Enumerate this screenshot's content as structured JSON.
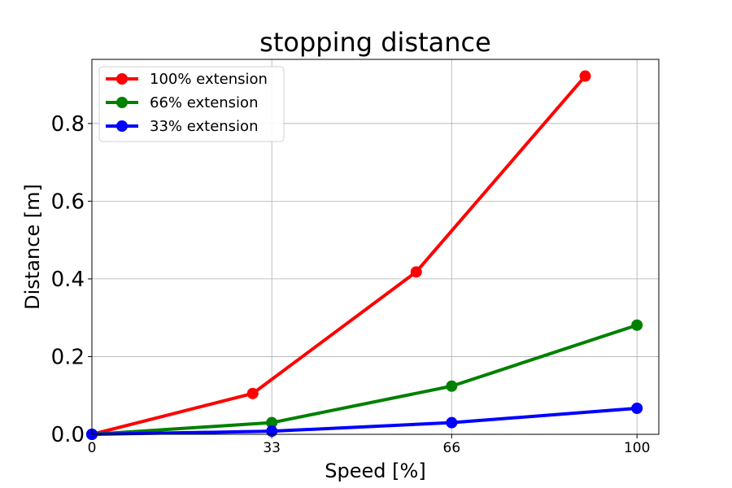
{
  "chart_data": {
    "type": "line",
    "title": "stopping distance",
    "xlabel": "Speed [%]",
    "ylabel": "Distance [m]",
    "xlim": [
      0,
      104
    ],
    "ylim": [
      0,
      0.965
    ],
    "x_ticks": [
      0,
      33,
      66,
      100
    ],
    "x_tick_labels": [
      "0",
      "33",
      "66",
      "100"
    ],
    "y_ticks": [
      0.0,
      0.2,
      0.4,
      0.6,
      0.8
    ],
    "y_tick_labels": [
      "0.0",
      "0.2",
      "0.4",
      "0.6",
      "0.8"
    ],
    "grid": true,
    "legend_position": "top-left",
    "series": [
      {
        "name": "100% extension",
        "color": "#ff0000",
        "points": [
          [
            0,
            0.0
          ],
          [
            29.5,
            0.105
          ],
          [
            59.5,
            0.418
          ],
          [
            90.5,
            0.922
          ]
        ]
      },
      {
        "name": "66% extension",
        "color": "#008000",
        "points": [
          [
            0,
            0.0
          ],
          [
            33,
            0.03
          ],
          [
            66,
            0.124
          ],
          [
            100,
            0.281
          ]
        ]
      },
      {
        "name": "33% extension",
        "color": "#0000ff",
        "points": [
          [
            0,
            0.0
          ],
          [
            33,
            0.008
          ],
          [
            66,
            0.03
          ],
          [
            100,
            0.067
          ]
        ]
      }
    ]
  }
}
